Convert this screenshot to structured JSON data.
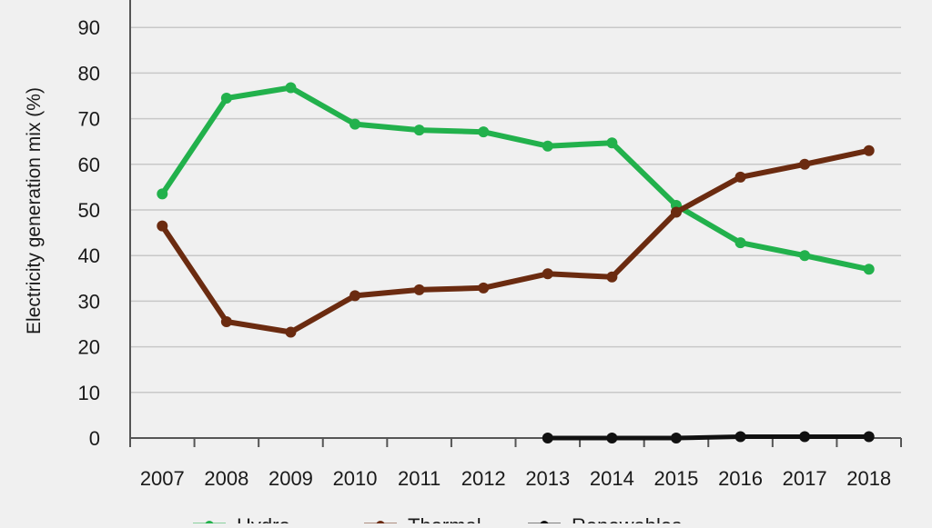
{
  "chart_data": {
    "type": "line",
    "title": "",
    "xlabel": "",
    "ylabel": "Electricity generation mix (%)",
    "ylim": [
      0,
      100
    ],
    "yticks": [
      0,
      10,
      20,
      30,
      40,
      50,
      60,
      70,
      80,
      90
    ],
    "grid": "horizontal",
    "legend_position": "bottom",
    "categories": [
      "2007",
      "2008",
      "2009",
      "2010",
      "2011",
      "2012",
      "2013",
      "2014",
      "2015",
      "2016",
      "2017",
      "2018"
    ],
    "series": [
      {
        "name": "Hydro",
        "color": "#22b14c",
        "values": [
          53.5,
          74.5,
          76.8,
          68.8,
          67.5,
          67.1,
          64.0,
          64.7,
          51.0,
          42.8,
          40.0,
          37.0
        ]
      },
      {
        "name": "Thermal",
        "color": "#6b2b10",
        "values": [
          46.5,
          25.5,
          23.2,
          31.2,
          32.5,
          32.9,
          36.0,
          35.3,
          49.5,
          57.2,
          60.0,
          63.0
        ]
      },
      {
        "name": "Renewables",
        "color": "#111111",
        "values": [
          null,
          null,
          null,
          null,
          null,
          null,
          0.0,
          0.0,
          0.0,
          0.3,
          0.3,
          0.3
        ]
      }
    ]
  }
}
